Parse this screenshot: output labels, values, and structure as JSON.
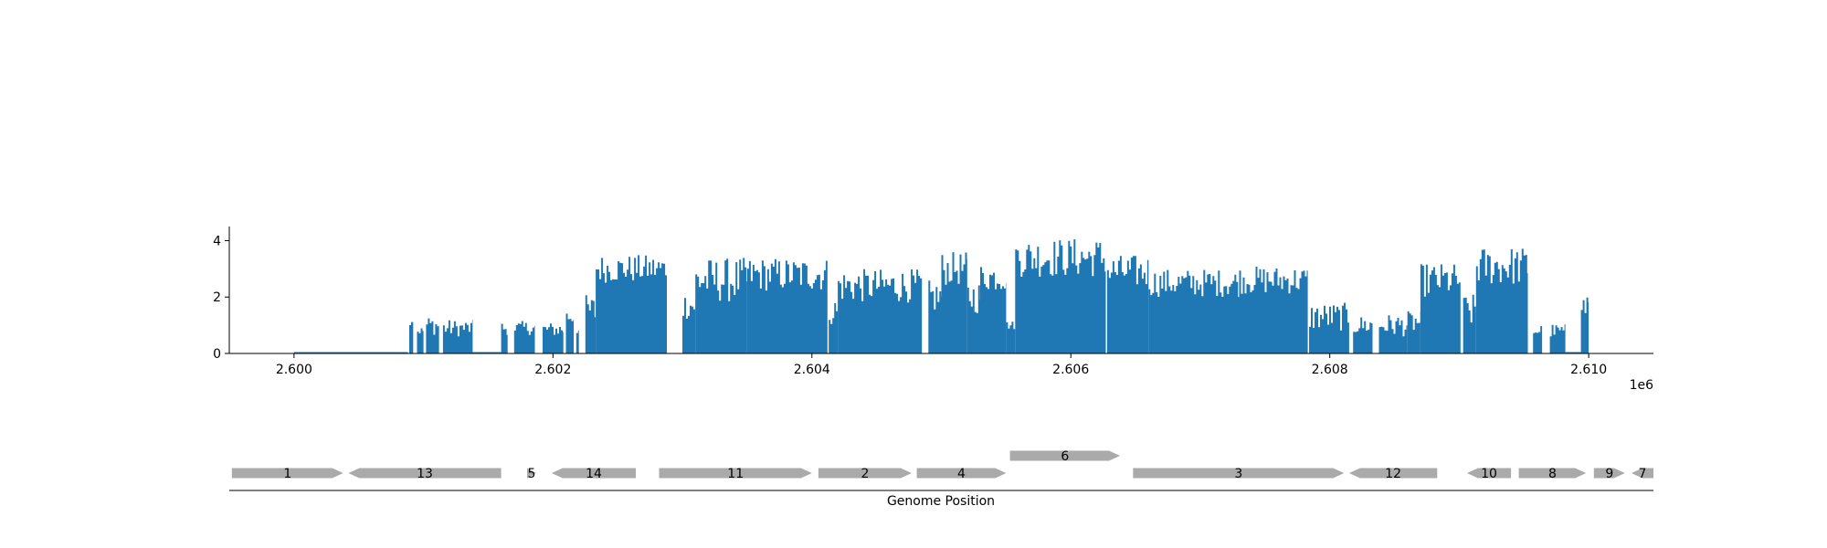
{
  "chart_data": [
    {
      "type": "area",
      "title": "",
      "xlabel": "",
      "ylabel": "",
      "x_offset_label": "1e6",
      "xlim": [
        2599500,
        2610500
      ],
      "ylim": [
        0,
        4.5
      ],
      "x_ticks": [
        2600000,
        2602000,
        2604000,
        2606000,
        2608000,
        2610000
      ],
      "x_tick_labels": [
        "2.600",
        "2.602",
        "2.604",
        "2.606",
        "2.608",
        "2.610"
      ],
      "y_ticks": [
        0,
        2,
        4
      ],
      "y_tick_labels": [
        "0",
        "2",
        "4"
      ],
      "grid": false,
      "fill_color": "#1f77b4",
      "coverage_segments": [
        {
          "start": 2600000,
          "end": 2600880,
          "level": 0.05,
          "amp": 0.0
        },
        {
          "start": 2600890,
          "end": 2600920,
          "level": 1.2,
          "amp": 0.2
        },
        {
          "start": 2600950,
          "end": 2601000,
          "level": 0.8,
          "amp": 0.15
        },
        {
          "start": 2601020,
          "end": 2601120,
          "level": 1.0,
          "amp": 0.35
        },
        {
          "start": 2601150,
          "end": 2601380,
          "level": 0.9,
          "amp": 0.3
        },
        {
          "start": 2601380,
          "end": 2601600,
          "level": 0.05,
          "amp": 0.0
        },
        {
          "start": 2601600,
          "end": 2601650,
          "level": 0.9,
          "amp": 0.25
        },
        {
          "start": 2601700,
          "end": 2601860,
          "level": 0.9,
          "amp": 0.25
        },
        {
          "start": 2601920,
          "end": 2602080,
          "level": 0.85,
          "amp": 0.25
        },
        {
          "start": 2602100,
          "end": 2602160,
          "level": 1.3,
          "amp": 0.3
        },
        {
          "start": 2602180,
          "end": 2602200,
          "level": 0.8,
          "amp": 0.1
        },
        {
          "start": 2602250,
          "end": 2602330,
          "level": 1.5,
          "amp": 0.6
        },
        {
          "start": 2602330,
          "end": 2602880,
          "level": 3.0,
          "amp": 0.5
        },
        {
          "start": 2603000,
          "end": 2603100,
          "level": 1.7,
          "amp": 0.5
        },
        {
          "start": 2603100,
          "end": 2603500,
          "level": 2.6,
          "amp": 0.8
        },
        {
          "start": 2603500,
          "end": 2604120,
          "level": 2.8,
          "amp": 0.6
        },
        {
          "start": 2604130,
          "end": 2604200,
          "level": 1.5,
          "amp": 0.5
        },
        {
          "start": 2604200,
          "end": 2604850,
          "level": 2.4,
          "amp": 0.6
        },
        {
          "start": 2604900,
          "end": 2605000,
          "level": 2.0,
          "amp": 0.6
        },
        {
          "start": 2605000,
          "end": 2605200,
          "level": 3.0,
          "amp": 0.6
        },
        {
          "start": 2605200,
          "end": 2605300,
          "level": 2.0,
          "amp": 0.6
        },
        {
          "start": 2605300,
          "end": 2605500,
          "level": 2.7,
          "amp": 0.5
        },
        {
          "start": 2605500,
          "end": 2605570,
          "level": 1.0,
          "amp": 0.15
        },
        {
          "start": 2605570,
          "end": 2606270,
          "level": 3.4,
          "amp": 0.7
        },
        {
          "start": 2606280,
          "end": 2606600,
          "level": 2.9,
          "amp": 0.6
        },
        {
          "start": 2606600,
          "end": 2607300,
          "level": 2.5,
          "amp": 0.5
        },
        {
          "start": 2607300,
          "end": 2607830,
          "level": 2.6,
          "amp": 0.5
        },
        {
          "start": 2607840,
          "end": 2608150,
          "level": 1.3,
          "amp": 0.5
        },
        {
          "start": 2608180,
          "end": 2608330,
          "level": 1.0,
          "amp": 0.35
        },
        {
          "start": 2608380,
          "end": 2608600,
          "level": 1.0,
          "amp": 0.4
        },
        {
          "start": 2608600,
          "end": 2608700,
          "level": 1.1,
          "amp": 0.4
        },
        {
          "start": 2608700,
          "end": 2609010,
          "level": 2.6,
          "amp": 0.6
        },
        {
          "start": 2609030,
          "end": 2609130,
          "level": 1.5,
          "amp": 0.6
        },
        {
          "start": 2609130,
          "end": 2609530,
          "level": 3.1,
          "amp": 0.7
        },
        {
          "start": 2609570,
          "end": 2609640,
          "level": 0.8,
          "amp": 0.25
        },
        {
          "start": 2609700,
          "end": 2609820,
          "level": 0.8,
          "amp": 0.25
        },
        {
          "start": 2609820,
          "end": 2609940,
          "level": 0.05,
          "amp": 0.0
        },
        {
          "start": 2609940,
          "end": 2610000,
          "level": 1.7,
          "amp": 0.6
        }
      ]
    },
    {
      "type": "gene-map",
      "xlabel": "Genome Position",
      "gene_color": "#aaaaaa",
      "genes": [
        {
          "label": "1",
          "start": 2599520,
          "end": 2600380,
          "strand": 1,
          "row": 0
        },
        {
          "label": "13",
          "start": 2600420,
          "end": 2601600,
          "strand": -1,
          "row": 0
        },
        {
          "label": "5",
          "start": 2601800,
          "end": 2601870,
          "strand": 1,
          "row": 0
        },
        {
          "label": "14",
          "start": 2601990,
          "end": 2602640,
          "strand": -1,
          "row": 0
        },
        {
          "label": "11",
          "start": 2602820,
          "end": 2604000,
          "strand": 1,
          "row": 0
        },
        {
          "label": "2",
          "start": 2604050,
          "end": 2604770,
          "strand": 1,
          "row": 0
        },
        {
          "label": "4",
          "start": 2604810,
          "end": 2605500,
          "strand": 1,
          "row": 0
        },
        {
          "label": "6",
          "start": 2605530,
          "end": 2606380,
          "strand": 1,
          "row": 1
        },
        {
          "label": "3",
          "start": 2606480,
          "end": 2608110,
          "strand": 1,
          "row": 0
        },
        {
          "label": "12",
          "start": 2608150,
          "end": 2608830,
          "strand": -1,
          "row": 0
        },
        {
          "label": "10",
          "start": 2609060,
          "end": 2609400,
          "strand": -1,
          "row": 0
        },
        {
          "label": "8",
          "start": 2609460,
          "end": 2609980,
          "strand": 1,
          "row": 0
        },
        {
          "label": "9",
          "start": 2610040,
          "end": 2610280,
          "strand": 1,
          "row": 0
        },
        {
          "label": "7",
          "start": 2610330,
          "end": 2610500,
          "strand": -1,
          "row": 0
        }
      ]
    }
  ]
}
